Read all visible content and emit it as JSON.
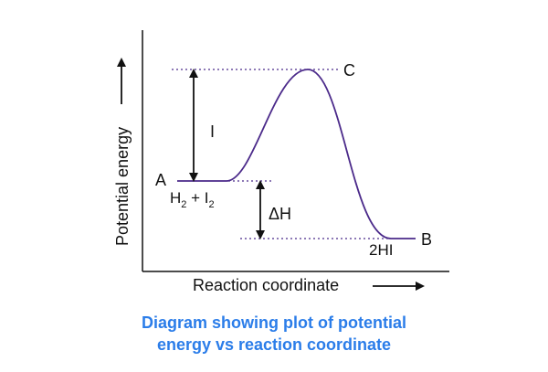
{
  "diagram": {
    "axes": {
      "y_label": "Potential energy",
      "x_label": "Reaction coordinate"
    },
    "points": {
      "reactant": {
        "letter": "A",
        "formula_main": "H",
        "formula_sub1": "2",
        "formula_mid": " + I",
        "formula_sub2": "2"
      },
      "product": {
        "letter": "B",
        "formula": "2HI"
      },
      "transition_state": {
        "letter": "C"
      }
    },
    "arrows": {
      "activation_energy": "I",
      "enthalpy_change": "ΔH"
    },
    "colors": {
      "curve": "#4b2a8a",
      "dotted": "#4b2a8a",
      "axes": "#111111",
      "caption": "#2b7de9"
    }
  },
  "caption": {
    "line1": "Diagram showing plot of potential",
    "line2": "energy vs reaction coordinate"
  }
}
